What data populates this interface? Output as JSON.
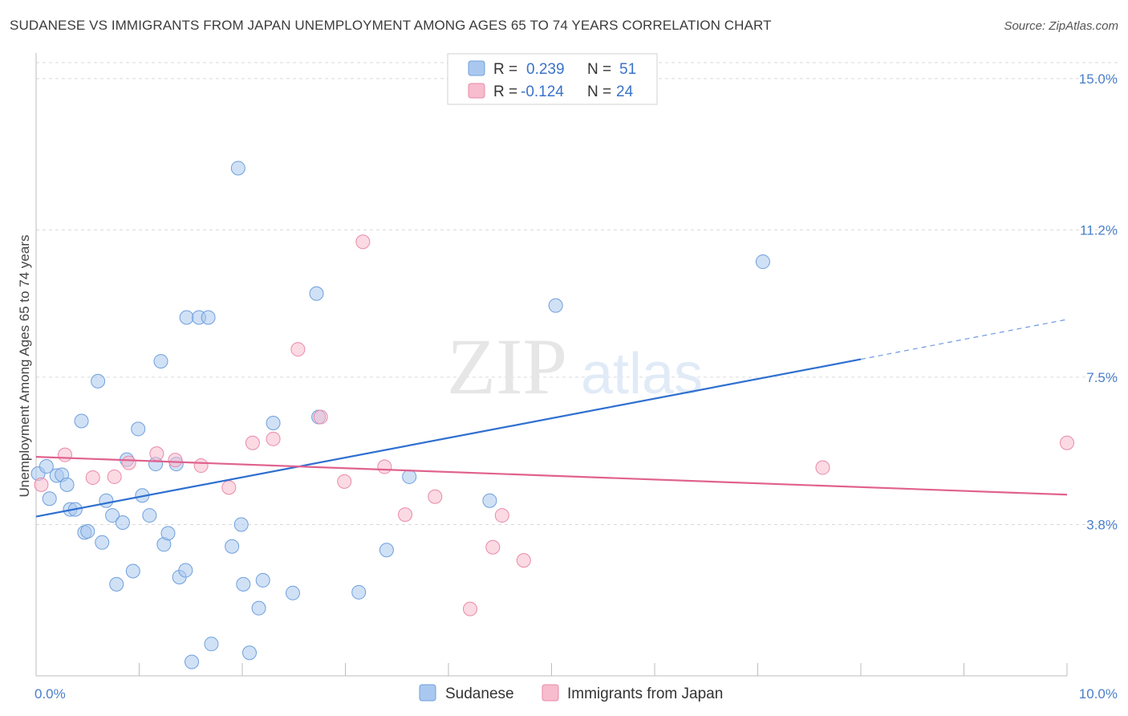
{
  "title": "SUDANESE VS IMMIGRANTS FROM JAPAN UNEMPLOYMENT AMONG AGES 65 TO 74 YEARS CORRELATION CHART",
  "source": "Source: ZipAtlas.com",
  "watermark": {
    "zip": "ZIP",
    "atlas": "atlas"
  },
  "colors": {
    "blue_fill": "#aac8ef",
    "blue_stroke": "#6f9fdc",
    "blue_line": "#2f6fd0",
    "pink_fill": "#f7bccd",
    "pink_stroke": "#e98aa8",
    "pink_line": "#e0628e",
    "grid": "#d9d9d9",
    "tick_label": "#4a7fc8"
  },
  "legend": {
    "rows": [
      {
        "r_label": "R =",
        "r_value": "0.239",
        "n_label": "N =",
        "n_value": "51"
      },
      {
        "r_label": "R =",
        "r_value": "-0.124",
        "n_label": "N =",
        "n_value": "24"
      }
    ]
  },
  "chart_data": {
    "type": "scatter",
    "xlabel": "",
    "ylabel": "Unemployment Among Ages 65 to 74 years",
    "xlim": [
      0,
      10
    ],
    "ylim": [
      0,
      15.4
    ],
    "x_tick_labels": [
      "0.0%",
      "10.0%"
    ],
    "y_ticks": [
      3.8,
      7.5,
      11.2,
      15.0
    ],
    "y_tick_labels": [
      "3.8%",
      "7.5%",
      "11.2%",
      "15.0%"
    ],
    "grid": "horizontal dashed",
    "legend_position": "top-center",
    "series": [
      {
        "name": "Sudanese",
        "r": 0.239,
        "n": 51,
        "trend": {
          "x0": 0,
          "y0": 4.0,
          "x1": 8.0,
          "y1": 7.95,
          "dash_to_x": 10.0,
          "dash_to_y": 8.95
        },
        "points": [
          [
            0.02,
            5.08
          ],
          [
            0.1,
            5.26
          ],
          [
            0.13,
            4.45
          ],
          [
            0.2,
            5.03
          ],
          [
            0.25,
            5.05
          ],
          [
            0.3,
            4.8
          ],
          [
            0.33,
            4.18
          ],
          [
            0.38,
            4.18
          ],
          [
            0.44,
            6.4
          ],
          [
            0.47,
            3.6
          ],
          [
            0.5,
            3.63
          ],
          [
            0.6,
            7.4
          ],
          [
            0.64,
            3.35
          ],
          [
            0.68,
            4.4
          ],
          [
            0.74,
            4.03
          ],
          [
            0.78,
            2.3
          ],
          [
            0.84,
            3.85
          ],
          [
            0.88,
            5.43
          ],
          [
            0.94,
            2.63
          ],
          [
            0.99,
            6.2
          ],
          [
            1.03,
            4.53
          ],
          [
            1.1,
            4.03
          ],
          [
            1.16,
            5.32
          ],
          [
            1.21,
            7.9
          ],
          [
            1.24,
            3.3
          ],
          [
            1.28,
            3.58
          ],
          [
            1.36,
            5.32
          ],
          [
            1.39,
            2.48
          ],
          [
            1.45,
            2.65
          ],
          [
            1.46,
            9.0
          ],
          [
            1.51,
            0.35
          ],
          [
            1.58,
            9.0
          ],
          [
            1.67,
            9.0
          ],
          [
            1.7,
            0.8
          ],
          [
            1.9,
            3.25
          ],
          [
            1.96,
            12.75
          ],
          [
            1.99,
            3.8
          ],
          [
            2.01,
            2.3
          ],
          [
            2.07,
            0.58
          ],
          [
            2.16,
            1.7
          ],
          [
            2.2,
            2.4
          ],
          [
            2.3,
            6.35
          ],
          [
            2.49,
            2.08
          ],
          [
            2.72,
            9.6
          ],
          [
            2.74,
            6.5
          ],
          [
            3.13,
            2.1
          ],
          [
            3.4,
            3.16
          ],
          [
            3.62,
            5.0
          ],
          [
            4.4,
            4.4
          ],
          [
            5.04,
            9.3
          ],
          [
            7.05,
            10.4
          ]
        ]
      },
      {
        "name": "Immigrants from Japan",
        "r": -0.124,
        "n": 24,
        "trend": {
          "x0": 0,
          "y0": 5.5,
          "x1": 10.0,
          "y1": 4.55
        },
        "points": [
          [
            0.05,
            4.8
          ],
          [
            0.28,
            5.55
          ],
          [
            0.55,
            4.98
          ],
          [
            0.76,
            5.0
          ],
          [
            0.9,
            5.35
          ],
          [
            1.17,
            5.58
          ],
          [
            1.35,
            5.42
          ],
          [
            1.6,
            5.28
          ],
          [
            1.87,
            4.73
          ],
          [
            2.1,
            5.85
          ],
          [
            2.3,
            5.95
          ],
          [
            2.54,
            8.2
          ],
          [
            2.76,
            6.5
          ],
          [
            2.99,
            4.88
          ],
          [
            3.17,
            10.9
          ],
          [
            3.38,
            5.25
          ],
          [
            3.58,
            4.05
          ],
          [
            3.87,
            4.5
          ],
          [
            4.21,
            1.68
          ],
          [
            4.43,
            3.23
          ],
          [
            4.52,
            4.03
          ],
          [
            4.73,
            2.9
          ],
          [
            7.63,
            5.23
          ],
          [
            10.0,
            5.85
          ]
        ]
      }
    ]
  }
}
